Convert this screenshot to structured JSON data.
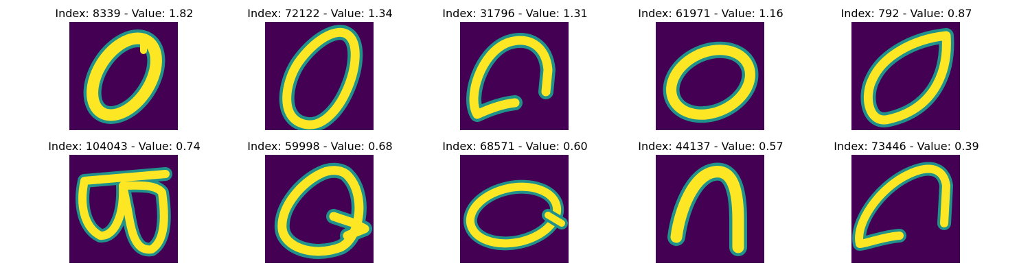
{
  "figure": {
    "colors": {
      "background": "#440154",
      "edge": "#21918c",
      "stroke": "#fde725"
    },
    "panels": [
      {
        "title": "Index: 8339 - Value: 1.82",
        "index": 8339,
        "value": 1.82,
        "glyph": "zero-slanted"
      },
      {
        "title": "Index: 72122 - Value: 1.34",
        "index": 72122,
        "value": 1.34,
        "glyph": "zero-upright"
      },
      {
        "title": "Index: 31796 - Value: 1.31",
        "index": 31796,
        "value": 1.31,
        "glyph": "open-loop"
      },
      {
        "title": "Index: 61971 - Value: 1.16",
        "index": 61971,
        "value": 1.16,
        "glyph": "zero-round"
      },
      {
        "title": "Index: 792 - Value: 0.87",
        "index": 792,
        "value": 0.87,
        "glyph": "zero-teardrop"
      },
      {
        "title": "Index: 104043 - Value: 0.74",
        "index": 104043,
        "value": 0.74,
        "glyph": "double-loop"
      },
      {
        "title": "Index: 59998 - Value: 0.68",
        "index": 59998,
        "value": 0.68,
        "glyph": "zero-with-tail"
      },
      {
        "title": "Index: 68571 - Value: 0.60",
        "index": 68571,
        "value": 0.6,
        "glyph": "zero-wide-tail"
      },
      {
        "title": "Index: 44137 - Value: 0.57",
        "index": 44137,
        "value": 0.57,
        "glyph": "arch"
      },
      {
        "title": "Index: 73446 - Value: 0.39",
        "index": 73446,
        "value": 0.39,
        "glyph": "open-loop-small"
      }
    ]
  }
}
